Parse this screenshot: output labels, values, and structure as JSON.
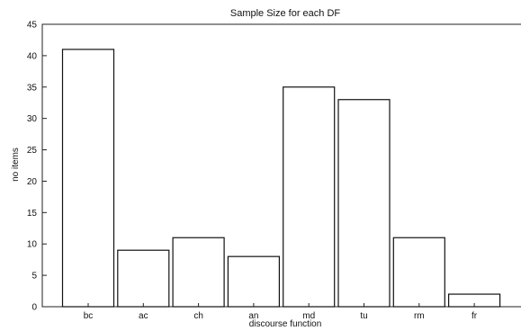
{
  "chart_data": {
    "type": "bar",
    "title": "Sample Size for each DF",
    "xlabel": "discourse function",
    "ylabel": "no items",
    "categories": [
      "bc",
      "ac",
      "ch",
      "an",
      "md",
      "tu",
      "rm",
      "fr"
    ],
    "values": [
      41,
      9,
      11,
      8,
      35,
      33,
      11,
      2
    ],
    "ylim": [
      0,
      45
    ],
    "yticks": [
      "0",
      "5",
      "10",
      "15",
      "20",
      "25",
      "30",
      "35",
      "40",
      "45"
    ],
    "grid": false,
    "legend": null
  }
}
